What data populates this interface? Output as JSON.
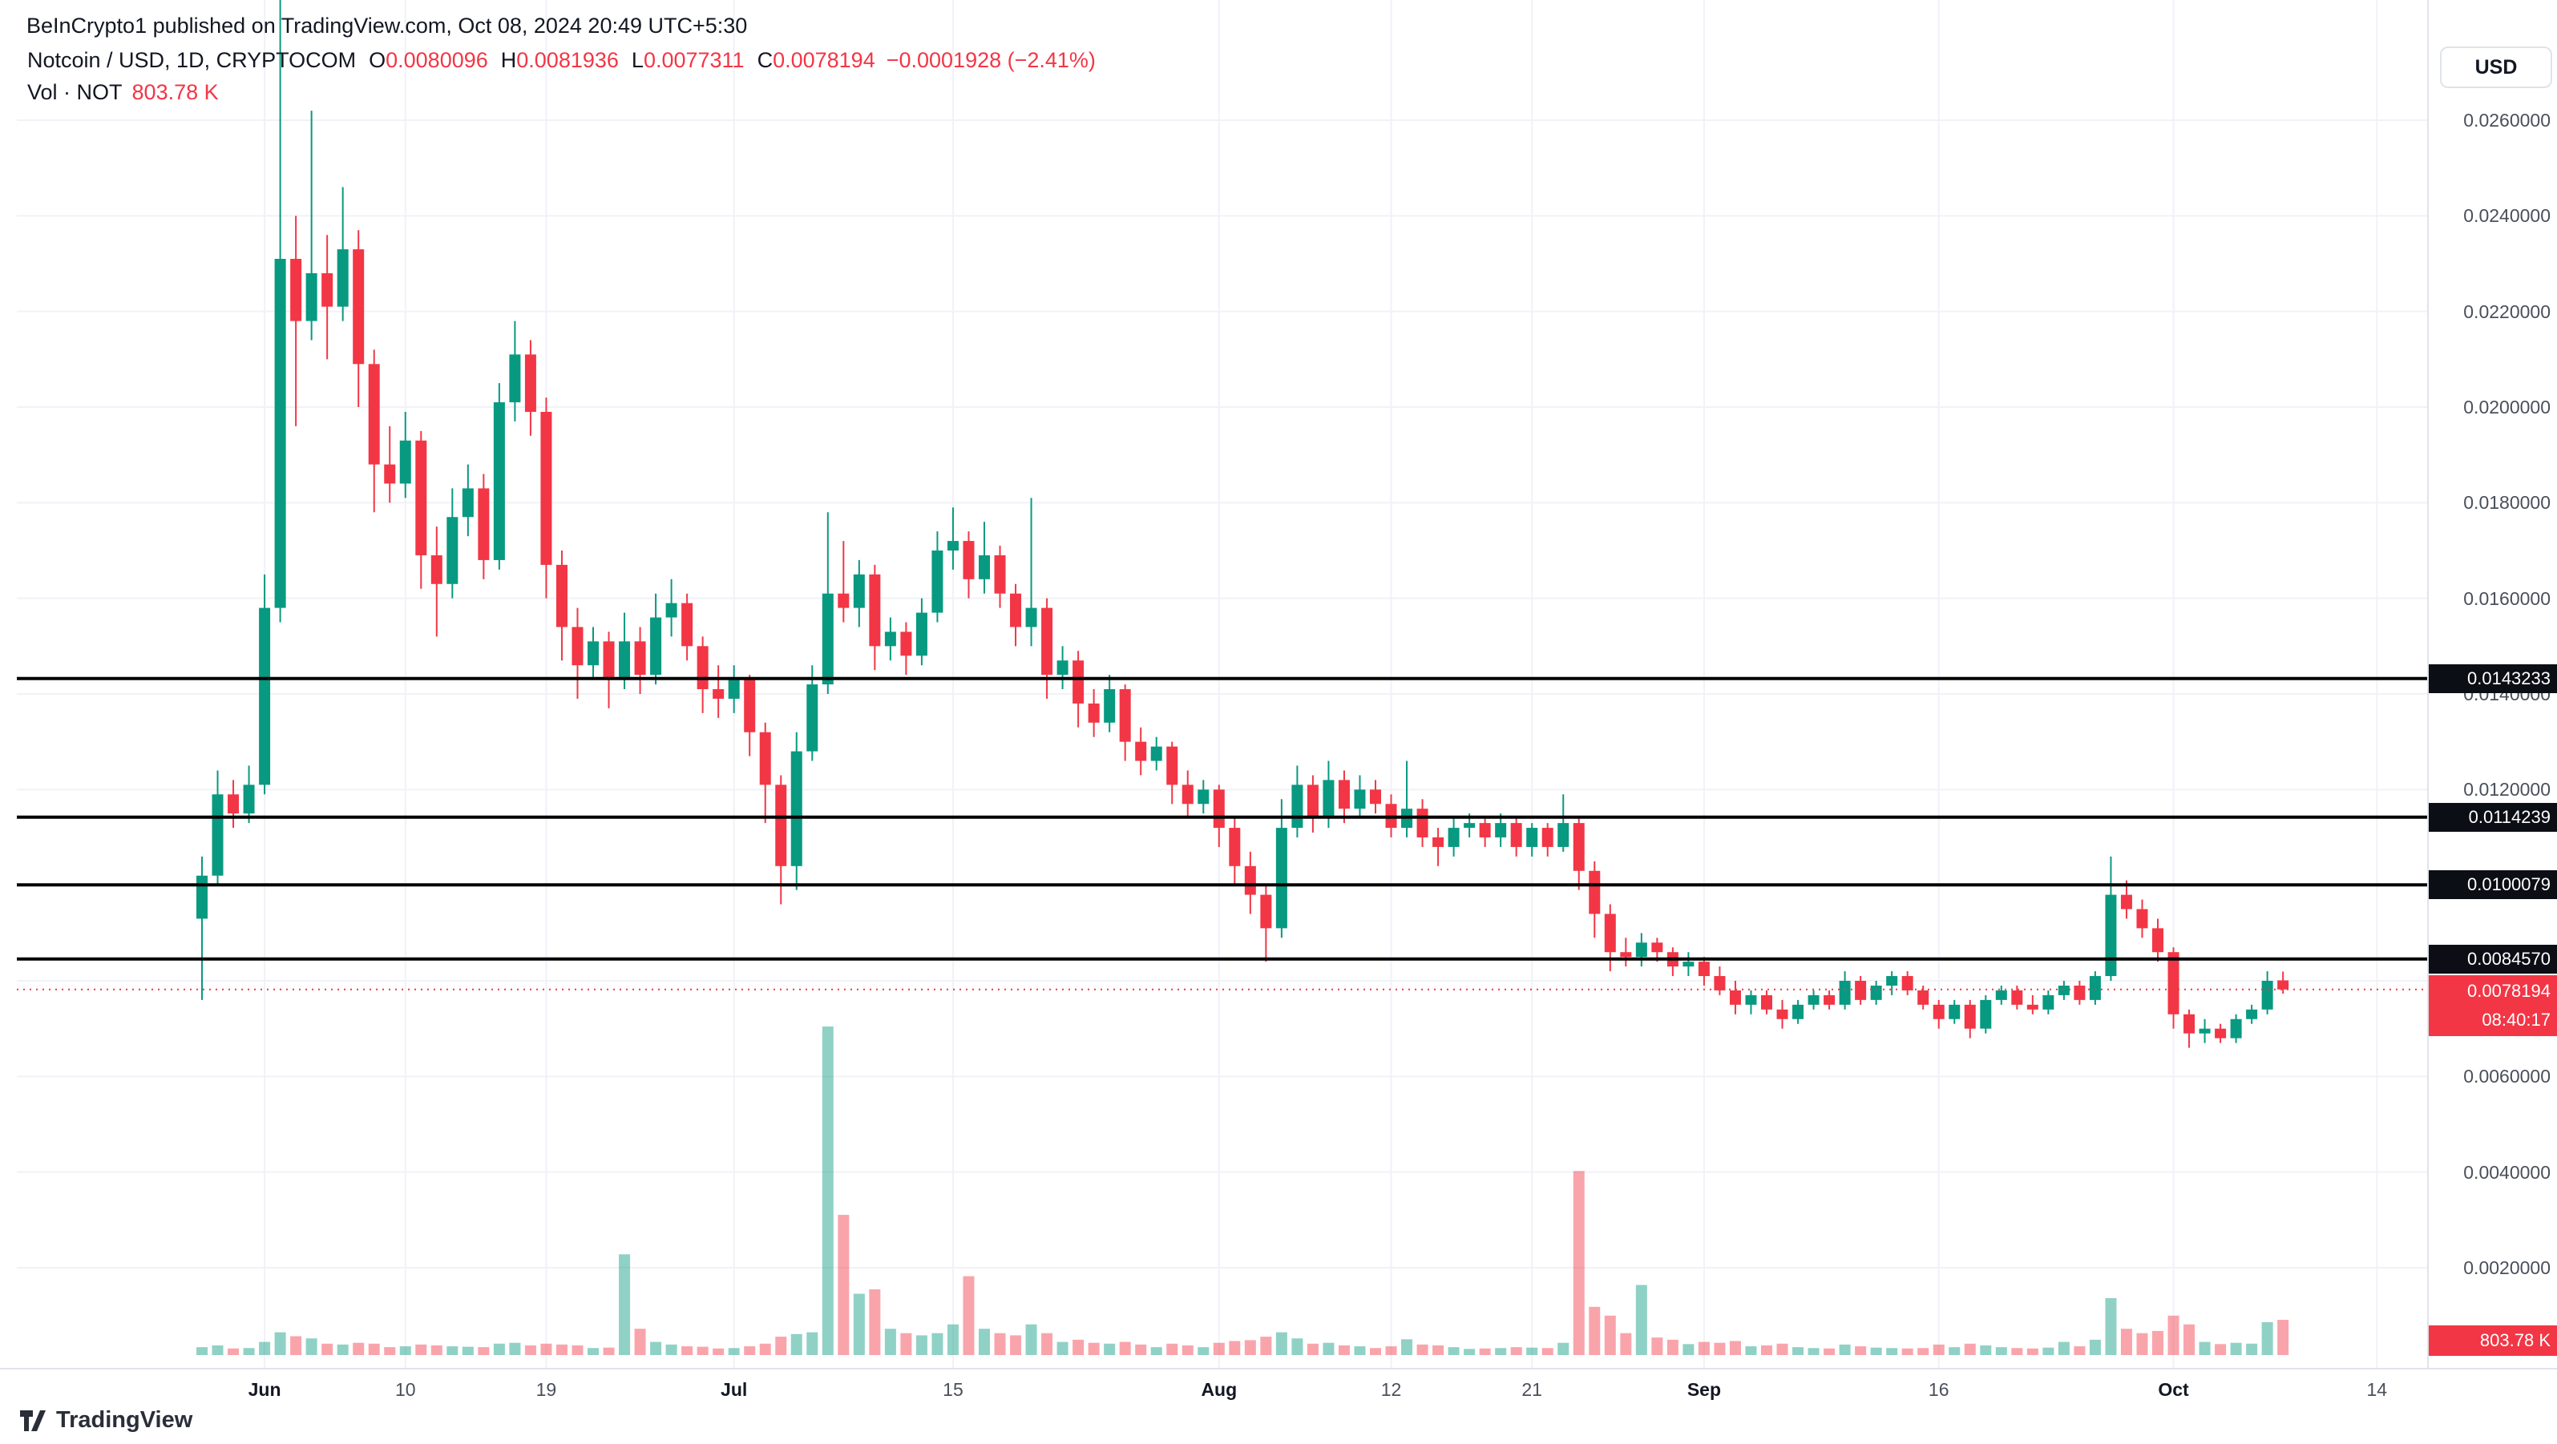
{
  "header": {
    "byline": "BeInCrypto1 published on TradingView.com, Oct 08, 2024 20:49 UTC+5:30"
  },
  "legend": {
    "symbol_title": "Notcoin / USD, 1D, CRYPTOCOM",
    "ohlc": [
      {
        "k": "O",
        "v": "0.0080096"
      },
      {
        "k": "H",
        "v": "0.0081936"
      },
      {
        "k": "L",
        "v": "0.0077311"
      },
      {
        "k": "C",
        "v": "0.0078194"
      }
    ],
    "change": "−0.0001928 (−2.41%)",
    "vol_label": "Vol · NOT",
    "vol_value": "803.78 K"
  },
  "axis": {
    "currency_button": "USD"
  },
  "footer": {
    "logo_text": "TradingView"
  },
  "colors": {
    "up": "#089981",
    "down": "#F23645",
    "up_vol": "rgba(8,153,129,0.45)",
    "down_vol": "rgba(242,54,69,0.45)",
    "grid": "#f0f2f8",
    "level_line": "#000000",
    "accent_red": "#F23645"
  },
  "chart_data": {
    "type": "candlestick",
    "title": "Notcoin / USD, 1D, CRYPTOCOM",
    "symbol": "Notcoin / USD",
    "interval": "1D",
    "exchange": "CRYPTOCOM",
    "ylabel": "USD",
    "y_axis_range": [
      0.002,
      0.0288
    ],
    "volume_unit": "K",
    "candles_format": [
      "open",
      "high",
      "low",
      "close",
      "volume_K"
    ],
    "candles": [
      [
        0.0093,
        0.0106,
        0.0076,
        0.0102,
        180
      ],
      [
        0.0102,
        0.0124,
        0.01,
        0.0119,
        220
      ],
      [
        0.0119,
        0.0122,
        0.0112,
        0.0115,
        150
      ],
      [
        0.0115,
        0.0125,
        0.0113,
        0.0121,
        160
      ],
      [
        0.0121,
        0.0165,
        0.0119,
        0.0158,
        300
      ],
      [
        0.0158,
        0.029,
        0.0155,
        0.0231,
        520
      ],
      [
        0.0231,
        0.024,
        0.0196,
        0.0218,
        430
      ],
      [
        0.0218,
        0.0262,
        0.0214,
        0.0228,
        380
      ],
      [
        0.0228,
        0.0236,
        0.021,
        0.0221,
        260
      ],
      [
        0.0221,
        0.0246,
        0.0218,
        0.0233,
        240
      ],
      [
        0.0233,
        0.0237,
        0.02,
        0.0209,
        280
      ],
      [
        0.0209,
        0.0212,
        0.0178,
        0.0188,
        260
      ],
      [
        0.0188,
        0.0196,
        0.018,
        0.0184,
        180
      ],
      [
        0.0184,
        0.0199,
        0.0181,
        0.0193,
        200
      ],
      [
        0.0193,
        0.0195,
        0.0162,
        0.0169,
        240
      ],
      [
        0.0169,
        0.0175,
        0.0152,
        0.0163,
        220
      ],
      [
        0.0163,
        0.0183,
        0.016,
        0.0177,
        200
      ],
      [
        0.0177,
        0.0188,
        0.0173,
        0.0183,
        190
      ],
      [
        0.0183,
        0.0186,
        0.0164,
        0.0168,
        180
      ],
      [
        0.0168,
        0.0205,
        0.0166,
        0.0201,
        260
      ],
      [
        0.0201,
        0.0218,
        0.0197,
        0.0211,
        280
      ],
      [
        0.0211,
        0.0214,
        0.0194,
        0.0199,
        220
      ],
      [
        0.0199,
        0.0202,
        0.016,
        0.0167,
        260
      ],
      [
        0.0167,
        0.017,
        0.0147,
        0.0154,
        240
      ],
      [
        0.0154,
        0.0158,
        0.0139,
        0.0146,
        220
      ],
      [
        0.0146,
        0.0154,
        0.0143,
        0.0151,
        160
      ],
      [
        0.0151,
        0.0153,
        0.0137,
        0.0143,
        170
      ],
      [
        0.0143,
        0.0157,
        0.0141,
        0.0151,
        2300
      ],
      [
        0.0151,
        0.0154,
        0.014,
        0.0144,
        600
      ],
      [
        0.0144,
        0.0161,
        0.0142,
        0.0156,
        300
      ],
      [
        0.0156,
        0.0164,
        0.0152,
        0.0159,
        240
      ],
      [
        0.0159,
        0.0161,
        0.0147,
        0.015,
        200
      ],
      [
        0.015,
        0.0152,
        0.0136,
        0.0141,
        190
      ],
      [
        0.0141,
        0.0146,
        0.0135,
        0.0139,
        150
      ],
      [
        0.0139,
        0.0146,
        0.0136,
        0.0143,
        160
      ],
      [
        0.0143,
        0.0144,
        0.0127,
        0.0132,
        200
      ],
      [
        0.0132,
        0.0134,
        0.0113,
        0.0121,
        260
      ],
      [
        0.0121,
        0.0123,
        0.0096,
        0.0104,
        420
      ],
      [
        0.0104,
        0.0132,
        0.0099,
        0.0128,
        480
      ],
      [
        0.0128,
        0.0146,
        0.0126,
        0.0142,
        520
      ],
      [
        0.0142,
        0.0178,
        0.014,
        0.0161,
        7500
      ],
      [
        0.0161,
        0.0172,
        0.0155,
        0.0158,
        3200
      ],
      [
        0.0158,
        0.0168,
        0.0154,
        0.0165,
        1400
      ],
      [
        0.0165,
        0.0167,
        0.0145,
        0.015,
        1500
      ],
      [
        0.015,
        0.0156,
        0.0147,
        0.0153,
        600
      ],
      [
        0.0153,
        0.0155,
        0.0144,
        0.0148,
        500
      ],
      [
        0.0148,
        0.016,
        0.0146,
        0.0157,
        450
      ],
      [
        0.0157,
        0.0174,
        0.0155,
        0.017,
        500
      ],
      [
        0.017,
        0.0179,
        0.0166,
        0.0172,
        700
      ],
      [
        0.0172,
        0.0174,
        0.016,
        0.0164,
        1800
      ],
      [
        0.0164,
        0.0176,
        0.0161,
        0.0169,
        600
      ],
      [
        0.0169,
        0.0171,
        0.0158,
        0.0161,
        500
      ],
      [
        0.0161,
        0.0163,
        0.015,
        0.0154,
        450
      ],
      [
        0.0154,
        0.0181,
        0.015,
        0.0158,
        700
      ],
      [
        0.0158,
        0.016,
        0.0139,
        0.0144,
        500
      ],
      [
        0.0144,
        0.015,
        0.0141,
        0.0147,
        300
      ],
      [
        0.0147,
        0.0149,
        0.0133,
        0.0138,
        350
      ],
      [
        0.0138,
        0.0141,
        0.0131,
        0.0134,
        280
      ],
      [
        0.0134,
        0.0144,
        0.0132,
        0.0141,
        260
      ],
      [
        0.0141,
        0.0142,
        0.0126,
        0.013,
        300
      ],
      [
        0.013,
        0.0133,
        0.0123,
        0.0126,
        240
      ],
      [
        0.0126,
        0.0131,
        0.0124,
        0.0129,
        180
      ],
      [
        0.0129,
        0.013,
        0.0117,
        0.0121,
        260
      ],
      [
        0.0121,
        0.0124,
        0.0114,
        0.0117,
        220
      ],
      [
        0.0117,
        0.0122,
        0.0115,
        0.012,
        180
      ],
      [
        0.012,
        0.0121,
        0.0108,
        0.0112,
        280
      ],
      [
        0.0112,
        0.0114,
        0.01,
        0.0104,
        320
      ],
      [
        0.0104,
        0.0107,
        0.0094,
        0.0098,
        340
      ],
      [
        0.0098,
        0.01,
        0.0084,
        0.0091,
        420
      ],
      [
        0.0091,
        0.0118,
        0.0089,
        0.0112,
        520
      ],
      [
        0.0112,
        0.0125,
        0.011,
        0.0121,
        380
      ],
      [
        0.0121,
        0.0123,
        0.0111,
        0.0114,
        260
      ],
      [
        0.0114,
        0.0126,
        0.0112,
        0.0122,
        280
      ],
      [
        0.0122,
        0.0124,
        0.0113,
        0.0116,
        220
      ],
      [
        0.0116,
        0.0123,
        0.0114,
        0.012,
        200
      ],
      [
        0.012,
        0.0122,
        0.0115,
        0.0117,
        160
      ],
      [
        0.0117,
        0.0119,
        0.011,
        0.0112,
        200
      ],
      [
        0.0112,
        0.0126,
        0.011,
        0.0116,
        360
      ],
      [
        0.0116,
        0.0118,
        0.0108,
        0.011,
        240
      ],
      [
        0.011,
        0.0112,
        0.0104,
        0.0108,
        220
      ],
      [
        0.0108,
        0.0114,
        0.0106,
        0.0112,
        180
      ],
      [
        0.0112,
        0.0115,
        0.011,
        0.0113,
        140
      ],
      [
        0.0113,
        0.0114,
        0.0108,
        0.011,
        150
      ],
      [
        0.011,
        0.0115,
        0.0108,
        0.0113,
        160
      ],
      [
        0.0113,
        0.0114,
        0.0106,
        0.0108,
        180
      ],
      [
        0.0108,
        0.0113,
        0.0106,
        0.0112,
        170
      ],
      [
        0.0112,
        0.0113,
        0.0106,
        0.0108,
        160
      ],
      [
        0.0108,
        0.0119,
        0.0107,
        0.0113,
        280
      ],
      [
        0.0113,
        0.0114,
        0.0099,
        0.0103,
        4200
      ],
      [
        0.0103,
        0.0105,
        0.0089,
        0.0094,
        1100
      ],
      [
        0.0094,
        0.0096,
        0.0082,
        0.0086,
        900
      ],
      [
        0.0086,
        0.0089,
        0.0083,
        0.0085,
        500
      ],
      [
        0.0085,
        0.009,
        0.0083,
        0.0088,
        1600
      ],
      [
        0.0088,
        0.0089,
        0.0084,
        0.0086,
        400
      ],
      [
        0.0086,
        0.0087,
        0.0081,
        0.0083,
        350
      ],
      [
        0.0083,
        0.0086,
        0.0081,
        0.0084,
        250
      ],
      [
        0.0084,
        0.0085,
        0.0079,
        0.0081,
        300
      ],
      [
        0.0081,
        0.0083,
        0.0077,
        0.0078,
        280
      ],
      [
        0.0078,
        0.008,
        0.0073,
        0.0075,
        320
      ],
      [
        0.0075,
        0.0078,
        0.0073,
        0.0077,
        200
      ],
      [
        0.0077,
        0.0078,
        0.0073,
        0.0074,
        220
      ],
      [
        0.0074,
        0.0076,
        0.007,
        0.0072,
        260
      ],
      [
        0.0072,
        0.0076,
        0.0071,
        0.0075,
        180
      ],
      [
        0.0075,
        0.0078,
        0.0074,
        0.0077,
        160
      ],
      [
        0.0077,
        0.0078,
        0.0074,
        0.0075,
        150
      ],
      [
        0.0075,
        0.0082,
        0.0074,
        0.008,
        240
      ],
      [
        0.008,
        0.0081,
        0.0075,
        0.0076,
        200
      ],
      [
        0.0076,
        0.008,
        0.0075,
        0.0079,
        170
      ],
      [
        0.0079,
        0.0082,
        0.0077,
        0.0081,
        160
      ],
      [
        0.0081,
        0.0082,
        0.0077,
        0.0078,
        150
      ],
      [
        0.0078,
        0.0079,
        0.0074,
        0.0075,
        160
      ],
      [
        0.0075,
        0.0076,
        0.007,
        0.0072,
        240
      ],
      [
        0.0072,
        0.0076,
        0.0071,
        0.0075,
        180
      ],
      [
        0.0075,
        0.0076,
        0.0068,
        0.007,
        260
      ],
      [
        0.007,
        0.0077,
        0.0069,
        0.0076,
        220
      ],
      [
        0.0076,
        0.0079,
        0.0075,
        0.0078,
        180
      ],
      [
        0.0078,
        0.0079,
        0.0074,
        0.0075,
        160
      ],
      [
        0.0075,
        0.0077,
        0.0073,
        0.0074,
        150
      ],
      [
        0.0074,
        0.0078,
        0.0073,
        0.0077,
        170
      ],
      [
        0.0077,
        0.008,
        0.0076,
        0.0079,
        300
      ],
      [
        0.0079,
        0.008,
        0.0075,
        0.0076,
        200
      ],
      [
        0.0076,
        0.0082,
        0.0075,
        0.0081,
        350
      ],
      [
        0.0081,
        0.0106,
        0.008,
        0.0098,
        1300
      ],
      [
        0.0098,
        0.0101,
        0.0093,
        0.0095,
        600
      ],
      [
        0.0095,
        0.0097,
        0.0089,
        0.0091,
        500
      ],
      [
        0.0091,
        0.0093,
        0.0084,
        0.0086,
        550
      ],
      [
        0.0086,
        0.0087,
        0.007,
        0.0073,
        900
      ],
      [
        0.0073,
        0.0074,
        0.0066,
        0.0069,
        700
      ],
      [
        0.0069,
        0.0072,
        0.0067,
        0.007,
        300
      ],
      [
        0.007,
        0.0071,
        0.0067,
        0.0068,
        250
      ],
      [
        0.0068,
        0.0073,
        0.0067,
        0.0072,
        280
      ],
      [
        0.0072,
        0.0075,
        0.0071,
        0.0074,
        260
      ],
      [
        0.0074,
        0.0082,
        0.0073,
        0.008,
        750
      ],
      [
        0.0080096,
        0.0081936,
        0.0077311,
        0.0078194,
        803.78
      ]
    ],
    "x_ticks": [
      {
        "i": 4,
        "label": "Jun",
        "major": true
      },
      {
        "i": 13,
        "label": "10",
        "major": false
      },
      {
        "i": 22,
        "label": "19",
        "major": false
      },
      {
        "i": 34,
        "label": "Jul",
        "major": true
      },
      {
        "i": 48,
        "label": "15",
        "major": false
      },
      {
        "i": 65,
        "label": "Aug",
        "major": true
      },
      {
        "i": 76,
        "label": "12",
        "major": false
      },
      {
        "i": 85,
        "label": "21",
        "major": false
      },
      {
        "i": 96,
        "label": "Sep",
        "major": true
      },
      {
        "i": 111,
        "label": "16",
        "major": false
      },
      {
        "i": 126,
        "label": "Oct",
        "major": true
      },
      {
        "i": 139,
        "label": "14",
        "major": false
      }
    ],
    "y_ticks": [
      {
        "v": 0.026,
        "label": "0.0260000"
      },
      {
        "v": 0.024,
        "label": "0.0240000"
      },
      {
        "v": 0.022,
        "label": "0.0220000"
      },
      {
        "v": 0.02,
        "label": "0.0200000"
      },
      {
        "v": 0.018,
        "label": "0.0180000"
      },
      {
        "v": 0.016,
        "label": "0.0160000"
      },
      {
        "v": 0.014,
        "label": "0.0140000"
      },
      {
        "v": 0.012,
        "label": "0.0120000"
      },
      {
        "v": 0.006,
        "label": "0.0060000"
      },
      {
        "v": 0.004,
        "label": "0.0040000"
      },
      {
        "v": 0.002,
        "label": "0.0020000"
      }
    ],
    "y_gridlines": [
      0.026,
      0.024,
      0.022,
      0.02,
      0.018,
      0.016,
      0.014,
      0.012,
      0.01,
      0.008,
      0.006,
      0.004,
      0.002
    ],
    "price_lines": [
      {
        "v": 0.0143233,
        "label": "0.0143233"
      },
      {
        "v": 0.0114239,
        "label": "0.0114239"
      },
      {
        "v": 0.0100079,
        "label": "0.0100079"
      },
      {
        "v": 0.008457,
        "label": "0.0084570"
      }
    ],
    "last_price": {
      "v": 0.0078194,
      "label": "0.0078194",
      "countdown": "08:40:17",
      "direction": "down"
    },
    "volume_axis_label": "803.78 K"
  }
}
